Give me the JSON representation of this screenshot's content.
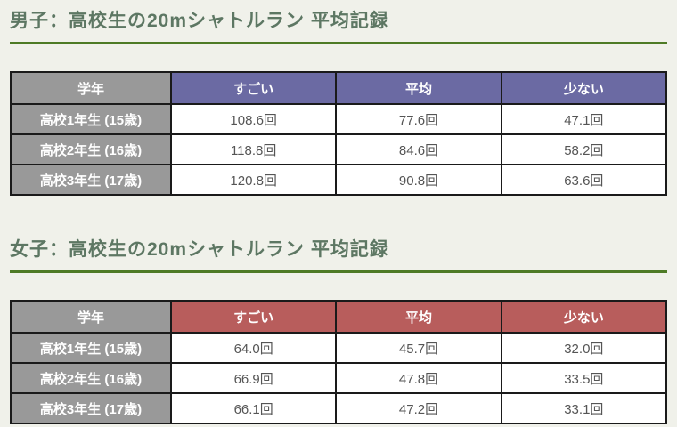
{
  "page": {
    "background_color": "#f0f1ea",
    "title_color": "#5d7763",
    "underline_color": "#4e7b26",
    "table_border_color": "#1a1a1a",
    "grade_cell_color": "#999999",
    "value_text_color": "#555555"
  },
  "sections": [
    {
      "id": "men",
      "title": "男子：高校生の20mシャトルラン 平均記録",
      "header_accent": "#6b6aa3",
      "columns": [
        "学年",
        "すごい",
        "平均",
        "少ない"
      ],
      "rows": [
        {
          "label": "高校1年生 (15歳)",
          "values": [
            "108.6回",
            "77.6回",
            "47.1回"
          ]
        },
        {
          "label": "高校2年生 (16歳)",
          "values": [
            "118.8回",
            "84.6回",
            "58.2回"
          ]
        },
        {
          "label": "高校3年生 (17歳)",
          "values": [
            "120.8回",
            "90.8回",
            "63.6回"
          ]
        }
      ]
    },
    {
      "id": "women",
      "title": "女子：高校生の20mシャトルラン 平均記録",
      "header_accent": "#b85d5c",
      "columns": [
        "学年",
        "すごい",
        "平均",
        "少ない"
      ],
      "rows": [
        {
          "label": "高校1年生 (15歳)",
          "values": [
            "64.0回",
            "45.7回",
            "32.0回"
          ]
        },
        {
          "label": "高校2年生 (16歳)",
          "values": [
            "66.9回",
            "47.8回",
            "33.5回"
          ]
        },
        {
          "label": "高校3年生 (17歳)",
          "values": [
            "66.1回",
            "47.2回",
            "33.1回"
          ]
        }
      ]
    }
  ]
}
